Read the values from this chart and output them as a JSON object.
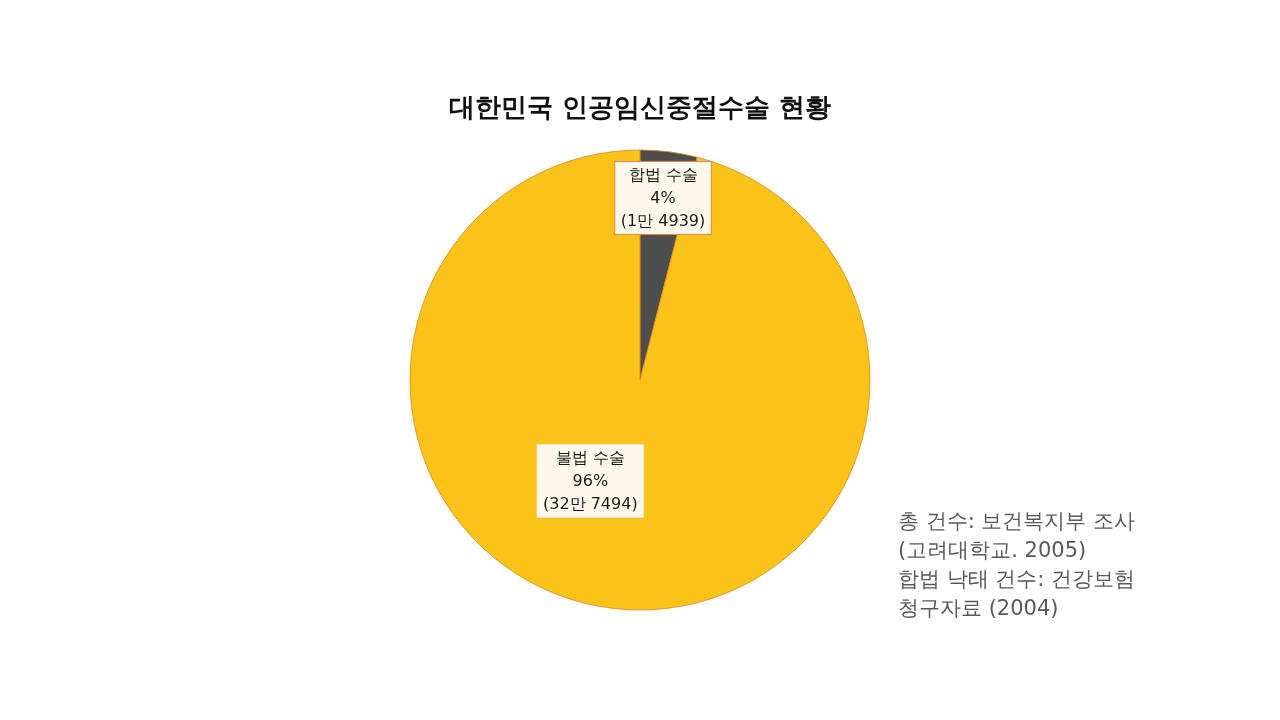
{
  "chart_data": {
    "type": "pie",
    "title": "대한민국 인공임신중절수술 현황",
    "categories": [
      "합법 수술",
      "불법 수술"
    ],
    "values": [
      4,
      96
    ],
    "colors": [
      "#4d4d4d",
      "#fbc31a"
    ],
    "value_labels": [
      "4%\n(1만 4939)",
      "96%\n(32만 7494)"
    ],
    "annotations": [
      "총 건수: 보건복지부 조사\n(고려대학교. 2005)",
      "합법 낙태 건수: 건강보험\n청구자료 (2004)"
    ]
  }
}
